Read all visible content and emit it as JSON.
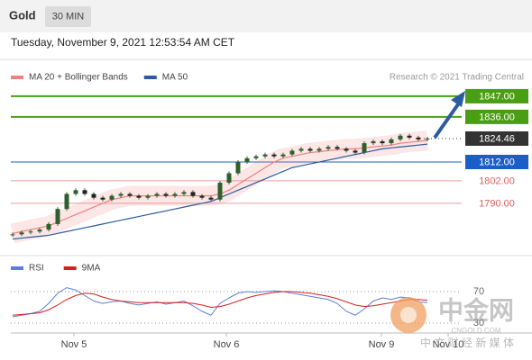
{
  "header": {
    "title": "Gold",
    "timeframe": "30 MIN",
    "date": "Tuesday, November 9, 2021 12:53:54 AM CET"
  },
  "watermark": {
    "name": "中金网",
    "site": "CNGOLD.COM",
    "slogan": "中 文 财 经 新 媒 体"
  },
  "chart_data": [
    {
      "type": "candlestick",
      "source": "Research © 2021 Trading Central",
      "color": "#2f5f2a",
      "values": [
        1773.5,
        1774.5,
        1775,
        1776,
        1779,
        1787,
        1795,
        1797,
        1795,
        1793,
        1792,
        1794,
        1795,
        1794,
        1793,
        1794,
        1795,
        1794,
        1795,
        1796,
        1794,
        1793,
        1792,
        1801,
        1806,
        1812,
        1814,
        1815,
        1816,
        1815,
        1816,
        1818,
        1819,
        1818,
        1819,
        1820,
        1819,
        1818,
        1817,
        1822,
        1823,
        1822,
        1824,
        1826,
        1825,
        1824,
        1824.46
      ],
      "series": [
        {
          "name": "MA 20 + Bollinger Bands",
          "color": "#f08080",
          "values": [
            1774,
            1775,
            1776,
            1777,
            1778,
            1780,
            1782,
            1784,
            1786,
            1788,
            1790,
            1792,
            1793,
            1794,
            1794,
            1794,
            1794,
            1794,
            1794,
            1794,
            1794,
            1794,
            1794,
            1795,
            1797,
            1800,
            1803,
            1806,
            1809,
            1812,
            1814,
            1815,
            1816,
            1817,
            1817.5,
            1818,
            1818.5,
            1819,
            1819,
            1819.5,
            1820,
            1820.5,
            1821,
            1822,
            1822.5,
            1823,
            1823.5
          ]
        },
        {
          "name": "MA 50",
          "color": "#2c5aa0",
          "values": [
            1771,
            1771.5,
            1772,
            1772.5,
            1773,
            1774,
            1775,
            1776,
            1777,
            1778,
            1779,
            1780,
            1781,
            1782,
            1783,
            1784,
            1785,
            1786,
            1787,
            1788,
            1789,
            1790,
            1791,
            1793,
            1795,
            1797,
            1799,
            1801,
            1803,
            1805,
            1807,
            1809,
            1810,
            1811,
            1812,
            1813,
            1814,
            1815,
            1816,
            1817,
            1818,
            1819,
            1819.5,
            1820,
            1820.5,
            1821,
            1821.5
          ]
        }
      ],
      "levels": [
        {
          "value": 1847,
          "label": "1847.00",
          "color": "#4a9e14"
        },
        {
          "value": 1836,
          "label": "1836.00",
          "color": "#4a9e14"
        },
        {
          "value": 1824.46,
          "label": "1824.46",
          "color": "#333333"
        },
        {
          "value": 1812,
          "label": "1812.00",
          "color": "#1a5fc8"
        },
        {
          "value": 1802,
          "label": "1802.00",
          "color": "#e06060"
        },
        {
          "value": 1790,
          "label": "1790.00",
          "color": "#e06060"
        }
      ],
      "ylim": [
        1766.5,
        1852.7
      ],
      "xlim": [
        0,
        57.6
      ],
      "xticks": [
        {
          "value": 6.8,
          "label": "Nov 5"
        },
        {
          "value": 23.7,
          "label": "Nov 6"
        },
        {
          "value": 40.9,
          "label": "Nov 9"
        },
        {
          "value": 48.3,
          "label": "Nov 10"
        }
      ]
    },
    {
      "type": "line",
      "ylim": [
        10,
        90
      ],
      "yticks": [
        70,
        30
      ],
      "xlim": [
        0,
        57.6
      ],
      "series": [
        {
          "name": "RSI",
          "color": "#5b7fd6",
          "values": [
            38,
            40,
            42,
            45,
            55,
            68,
            75,
            72,
            65,
            58,
            55,
            57,
            58,
            55,
            53,
            55,
            57,
            54,
            56,
            58,
            52,
            45,
            40,
            55,
            62,
            68,
            70,
            69,
            70,
            71,
            70,
            68,
            66,
            64,
            62,
            60,
            55,
            45,
            40,
            48,
            58,
            62,
            60,
            63,
            62,
            57,
            56
          ]
        },
        {
          "name": "9MA",
          "color": "#d62020",
          "values": [
            40,
            41,
            42,
            43,
            47,
            53,
            60,
            65,
            68,
            67,
            63,
            60,
            58,
            57,
            56,
            56,
            56,
            56,
            56,
            56,
            55,
            53,
            50,
            51,
            54,
            58,
            62,
            65,
            67,
            69,
            70,
            70,
            69,
            68,
            66,
            64,
            61,
            57,
            53,
            51,
            52,
            54,
            56,
            58,
            60,
            60,
            59
          ]
        }
      ]
    }
  ]
}
